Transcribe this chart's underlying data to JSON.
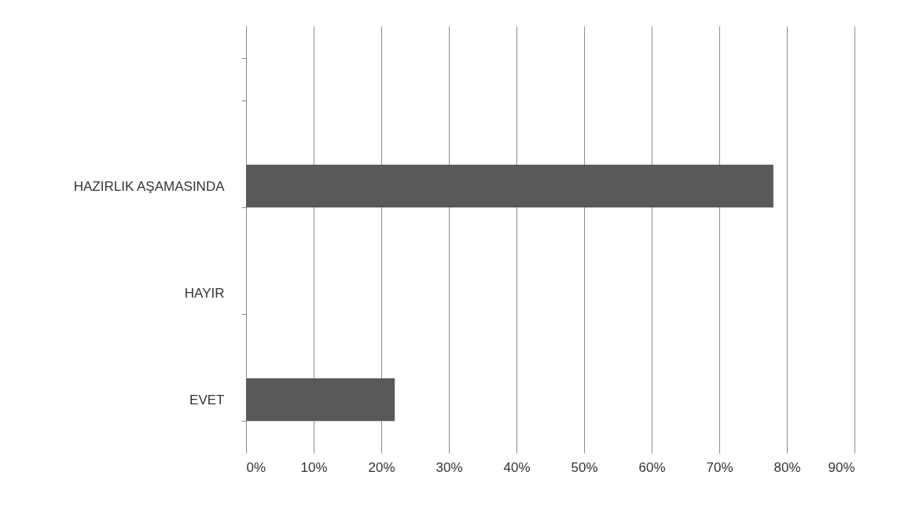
{
  "chart_data": {
    "type": "bar",
    "orientation": "horizontal",
    "categories": [
      null,
      "HAZIRLIK AŞAMASINDA",
      "HAYIR",
      "EVET"
    ],
    "values": [
      null,
      78,
      0,
      22
    ],
    "color": "#595959",
    "xlim": [
      0,
      90
    ],
    "xticks": [
      {
        "value": 0,
        "label": "0%"
      },
      {
        "value": 10,
        "label": "10%"
      },
      {
        "value": 20,
        "label": "20%"
      },
      {
        "value": 30,
        "label": "30%"
      },
      {
        "value": 40,
        "label": "40%"
      },
      {
        "value": 50,
        "label": "50%"
      },
      {
        "value": 60,
        "label": "60%"
      },
      {
        "value": 70,
        "label": "70%"
      },
      {
        "value": 80,
        "label": "80%"
      },
      {
        "value": 90,
        "label": "90%"
      }
    ],
    "grid": "x"
  }
}
